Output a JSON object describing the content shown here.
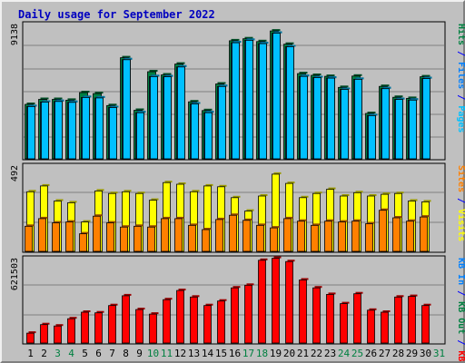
{
  "chart_data": [
    {
      "type": "bar",
      "title": "Daily usage for September 2022",
      "top_tick_label": "9138",
      "right_labels": [
        {
          "text": "Hits",
          "color": "#008040"
        },
        {
          "text": " / ",
          "color": "#0000ff"
        },
        {
          "text": "Files",
          "color": "#0080ff"
        },
        {
          "text": " / ",
          "color": "#0000ff"
        },
        {
          "text": "Pages",
          "color": "#00c0ff"
        }
      ],
      "ylim": [
        0,
        9138
      ],
      "categories": [
        "1",
        "2",
        "3",
        "4",
        "5",
        "6",
        "7",
        "8",
        "9",
        "10",
        "11",
        "12",
        "13",
        "14",
        "15",
        "16",
        "17",
        "18",
        "19",
        "20",
        "21",
        "22",
        "23",
        "24",
        "25",
        "26",
        "27",
        "28",
        "29",
        "30",
        "31"
      ],
      "weekend_days": [
        "3",
        "4",
        "10",
        "11",
        "17",
        "18",
        "24",
        "25",
        "31"
      ],
      "series": [
        {
          "name": "Hits",
          "color": "#008040",
          "values": [
            3780,
            4130,
            4130,
            4070,
            4600,
            4530,
            3700,
            7020,
            3370,
            6050,
            5830,
            6580,
            3960,
            3350,
            5200,
            8200,
            8340,
            8140,
            8880,
            7960,
            5920,
            5800,
            5730,
            4960,
            5750,
            3150,
            5030,
            4270,
            4200,
            5700,
            null
          ]
        },
        {
          "name": "Files",
          "color": "#0080ff",
          "values": [
            3630,
            3940,
            3980,
            3920,
            4260,
            4230,
            3560,
            6880,
            3200,
            5710,
            5700,
            6380,
            3810,
            3200,
            5020,
            8060,
            8230,
            8000,
            8720,
            7780,
            5720,
            5640,
            5600,
            4820,
            5520,
            3000,
            4870,
            4120,
            4080,
            5570,
            null
          ]
        },
        {
          "name": "Pages",
          "color": "#00c0ff",
          "values": [
            3630,
            3940,
            3980,
            3920,
            4260,
            4230,
            3560,
            6880,
            3200,
            5710,
            5700,
            6380,
            3810,
            3200,
            5020,
            8060,
            8230,
            8000,
            8720,
            7780,
            5720,
            5640,
            5600,
            4820,
            5520,
            3000,
            4870,
            4120,
            4080,
            5570,
            null
          ]
        }
      ]
    },
    {
      "type": "bar",
      "top_tick_label": "492",
      "right_labels": [
        {
          "text": "Sites",
          "color": "#ff8000"
        },
        {
          "text": " / ",
          "color": "#0000ff"
        },
        {
          "text": "Visits",
          "color": "#ffff00"
        }
      ],
      "ylim": [
        0,
        492
      ],
      "categories": [
        "1",
        "2",
        "3",
        "4",
        "5",
        "6",
        "7",
        "8",
        "9",
        "10",
        "11",
        "12",
        "13",
        "14",
        "15",
        "16",
        "17",
        "18",
        "19",
        "20",
        "21",
        "22",
        "23",
        "24",
        "25",
        "26",
        "27",
        "28",
        "29",
        "30",
        "31"
      ],
      "series": [
        {
          "name": "Visits",
          "color": "#ffff00",
          "values": [
            355,
            390,
            300,
            290,
            175,
            360,
            345,
            355,
            345,
            305,
            410,
            400,
            355,
            390,
            385,
            320,
            240,
            330,
            460,
            405,
            320,
            345,
            370,
            330,
            350,
            330,
            340,
            345,
            300,
            295,
            null
          ]
        },
        {
          "name": "Sites",
          "color": "#ff8000",
          "values": [
            150,
            195,
            170,
            175,
            105,
            210,
            170,
            145,
            150,
            145,
            195,
            195,
            155,
            130,
            190,
            215,
            185,
            155,
            140,
            195,
            180,
            155,
            180,
            175,
            180,
            165,
            245,
            200,
            180,
            205,
            null
          ]
        }
      ]
    },
    {
      "type": "bar",
      "top_tick_label": "621503",
      "right_labels": [
        {
          "text": "KB In",
          "color": "#0080ff"
        },
        {
          "text": " / ",
          "color": "#0000ff"
        },
        {
          "text": "KB Out",
          "color": "#008040"
        },
        {
          "text": " / ",
          "color": "#0000ff"
        },
        {
          "text": "KB F",
          "color": "#ff0000"
        }
      ],
      "ylim": [
        0,
        621503
      ],
      "categories": [
        "1",
        "2",
        "3",
        "4",
        "5",
        "6",
        "7",
        "8",
        "9",
        "10",
        "11",
        "12",
        "13",
        "14",
        "15",
        "16",
        "17",
        "18",
        "19",
        "20",
        "21",
        "22",
        "23",
        "24",
        "25",
        "26",
        "27",
        "28",
        "29",
        "30",
        "31"
      ],
      "series": [
        {
          "name": "KB F",
          "color": "#ff0000",
          "values": [
            75000,
            140000,
            130000,
            185000,
            235000,
            230000,
            285000,
            360000,
            255000,
            220000,
            330000,
            400000,
            350000,
            285000,
            320000,
            420000,
            440000,
            630000,
            645000,
            620000,
            480000,
            420000,
            370000,
            300000,
            375000,
            250000,
            235000,
            350000,
            355000,
            285000,
            null
          ]
        }
      ]
    }
  ]
}
